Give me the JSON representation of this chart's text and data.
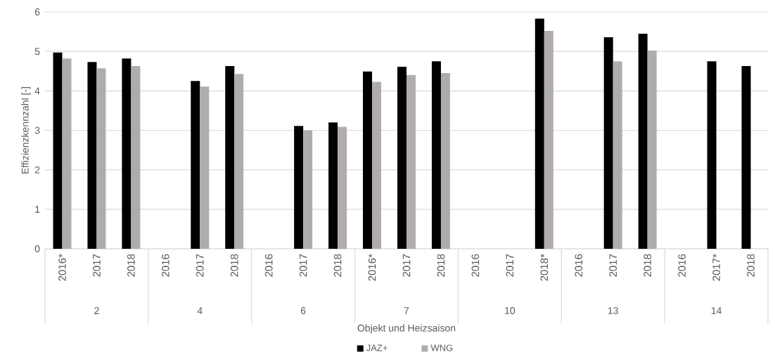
{
  "chart_data": {
    "type": "bar",
    "categories": [
      "2016*",
      "2017",
      "2018",
      "2016",
      "2017",
      "2018",
      "2016",
      "2017",
      "2018",
      "2016*",
      "2017",
      "2018",
      "2016",
      "2017",
      "2018*",
      "2016",
      "2017",
      "2018",
      "2016",
      "2017*",
      "2018"
    ],
    "series": [
      {
        "name": "JAZ+",
        "color": "#000000",
        "values": [
          4.97,
          4.73,
          4.82,
          null,
          4.25,
          4.63,
          null,
          3.11,
          3.2,
          4.49,
          4.61,
          4.75,
          null,
          null,
          5.83,
          null,
          5.36,
          5.45,
          null,
          4.75,
          4.63
        ]
      },
      {
        "name": "WNG",
        "color": "#afacab",
        "values": [
          4.82,
          4.57,
          4.63,
          null,
          4.11,
          4.43,
          null,
          3.0,
          3.09,
          4.23,
          4.4,
          4.45,
          null,
          null,
          5.52,
          null,
          4.75,
          5.02,
          null,
          null,
          null
        ]
      }
    ],
    "ylim": [
      0,
      6
    ],
    "yticks": [
      0,
      1,
      2,
      3,
      4,
      5,
      6
    ],
    "grid": "y",
    "legend": "bottom",
    "ylabel": "Effizienzkennzahl [-]",
    "xlabel": "Objekt und Heizsaison",
    "annotations": [
      "2",
      "4",
      "6",
      "7",
      "10",
      "13",
      "14"
    ]
  }
}
